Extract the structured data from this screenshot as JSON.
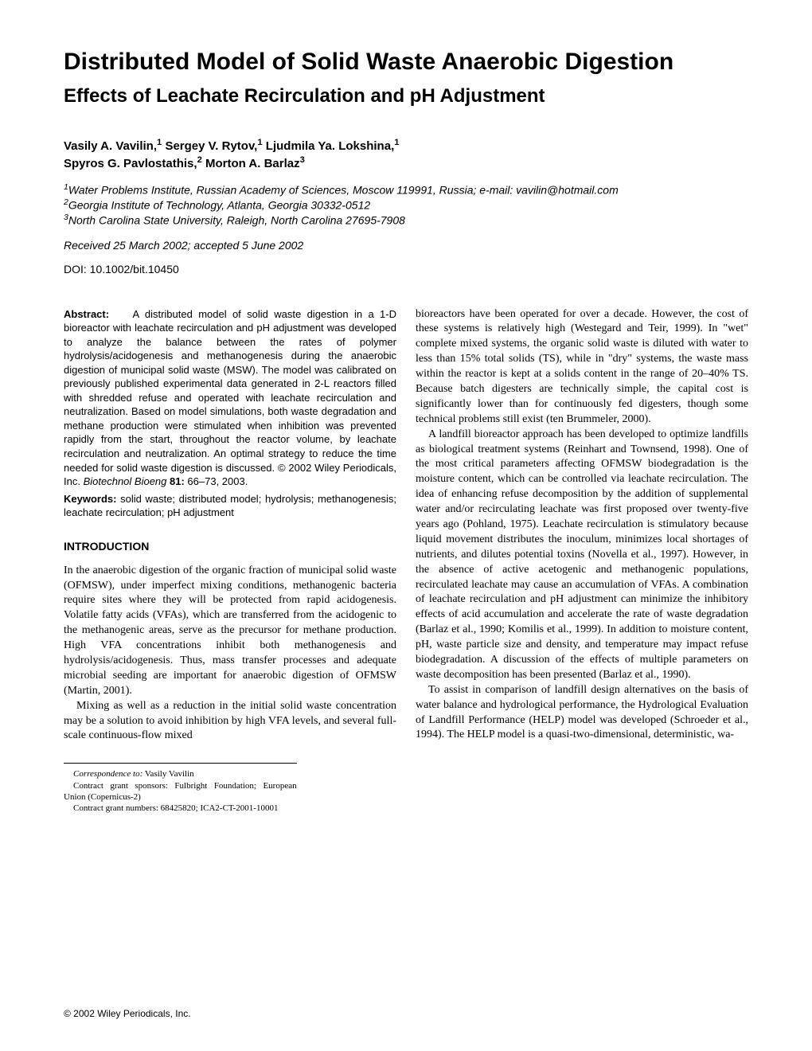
{
  "title": "Distributed Model of Solid Waste Anaerobic Digestion",
  "subtitle": "Effects of Leachate Recirculation and pH Adjustment",
  "authors_line1": "Vasily A. Vavilin,",
  "authors_sup1": "1",
  "authors_line2": " Sergey V. Rytov,",
  "authors_sup2": "1",
  "authors_line3": " Ljudmila Ya. Lokshina,",
  "authors_sup3": "1",
  "authors_line4": "Spyros G. Pavlostathis,",
  "authors_sup4": "2",
  "authors_line5": " Morton A. Barlaz",
  "authors_sup5": "3",
  "affiliation1_sup": "1",
  "affiliation1": "Water Problems Institute, Russian Academy of Sciences, Moscow 119991, Russia; e-mail: vavilin@hotmail.com",
  "affiliation2_sup": "2",
  "affiliation2": "Georgia Institute of Technology, Atlanta, Georgia 30332-0512",
  "affiliation3_sup": "3",
  "affiliation3": "North Carolina State University, Raleigh, North Carolina 27695-7908",
  "received": "Received 25 March 2002; accepted 5 June 2002",
  "doi": "DOI: 10.1002/bit.10450",
  "abstract_label": "Abstract:",
  "abstract_text": "A distributed model of solid waste digestion in a 1-D bioreactor with leachate recirculation and pH adjustment was developed to analyze the balance between the rates of polymer hydrolysis/acidogenesis and methanogenesis during the anaerobic digestion of municipal solid waste (MSW). The model was calibrated on previously published experimental data generated in 2-L reactors filled with shredded refuse and operated with leachate recirculation and neutralization. Based on model simulations, both waste degradation and methane production were stimulated when inhibition was prevented rapidly from the start, throughout the reactor volume, by leachate recirculation and neutralization. An optimal strategy to reduce the time needed for solid waste digestion is discussed. © 2002 Wiley Periodicals, Inc.",
  "abstract_citation_italic": "Biotechnol Bioeng",
  "abstract_citation_bold": " 81:",
  "abstract_citation_rest": " 66–73, 2003.",
  "keywords_label": "Keywords:",
  "keywords_text": " solid waste; distributed model; hydrolysis; methanogenesis; leachate recirculation; pH adjustment",
  "intro_heading": "INTRODUCTION",
  "intro_para1": "In the anaerobic digestion of the organic fraction of municipal solid waste (OFMSW), under imperfect mixing conditions, methanogenic bacteria require sites where they will be protected from rapid acidogenesis. Volatile fatty acids (VFAs), which are transferred from the acidogenic to the methanogenic areas, serve as the precursor for methane production. High VFA concentrations inhibit both methanogenesis and hydrolysis/acidogenesis. Thus, mass transfer processes and adequate microbial seeding are important for anaerobic digestion of OFMSW (Martin, 2001).",
  "intro_para2": "Mixing as well as a reduction in the initial solid waste concentration may be a solution to avoid inhibition by high VFA levels, and several full-scale continuous-flow mixed",
  "col2_para1": "bioreactors have been operated for over a decade. However, the cost of these systems is relatively high (Westegard and Teir, 1999). In \"wet\" complete mixed systems, the organic solid waste is diluted with water to less than 15% total solids (TS), while in \"dry\" systems, the waste mass within the reactor is kept at a solids content in the range of 20–40% TS. Because batch digesters are technically simple, the capital cost is significantly lower than for continuously fed digesters, though some technical problems still exist (ten Brummeler, 2000).",
  "col2_para2": "A landfill bioreactor approach has been developed to optimize landfills as biological treatment systems (Reinhart and Townsend, 1998). One of the most critical parameters affecting OFMSW biodegradation is the moisture content, which can be controlled via leachate recirculation. The idea of enhancing refuse decomposition by the addition of supplemental water and/or recirculating leachate was first proposed over twenty-five years ago (Pohland, 1975). Leachate recirculation is stimulatory because liquid movement distributes the inoculum, minimizes local shortages of nutrients, and dilutes potential toxins (Novella et al., 1997). However, in the absence of active acetogenic and methanogenic populations, recirculated leachate may cause an accumulation of VFAs. A combination of leachate recirculation and pH adjustment can minimize the inhibitory effects of acid accumulation and accelerate the rate of waste degradation (Barlaz et al., 1990; Komilis et al., 1999). In addition to moisture content, pH, waste particle size and density, and temperature may impact refuse biodegradation. A discussion of the effects of multiple parameters on waste decomposition has been presented (Barlaz et al., 1990).",
  "col2_para3": "To assist in comparison of landfill design alternatives on the basis of water balance and hydrological performance, the Hydrological Evaluation of Landfill Performance (HELP) model was developed (Schroeder et al., 1994). The HELP model is a quasi-two-dimensional, deterministic, wa-",
  "corr_label": "Correspondence to:",
  "corr_name": " Vasily Vavilin",
  "corr_sponsors": "Contract grant sponsors: Fulbright Foundation; European Union (Copernicus-2)",
  "corr_numbers": "Contract grant numbers: 68425820; ICA2-CT-2001-10001",
  "footer": "© 2002 Wiley Periodicals, Inc."
}
